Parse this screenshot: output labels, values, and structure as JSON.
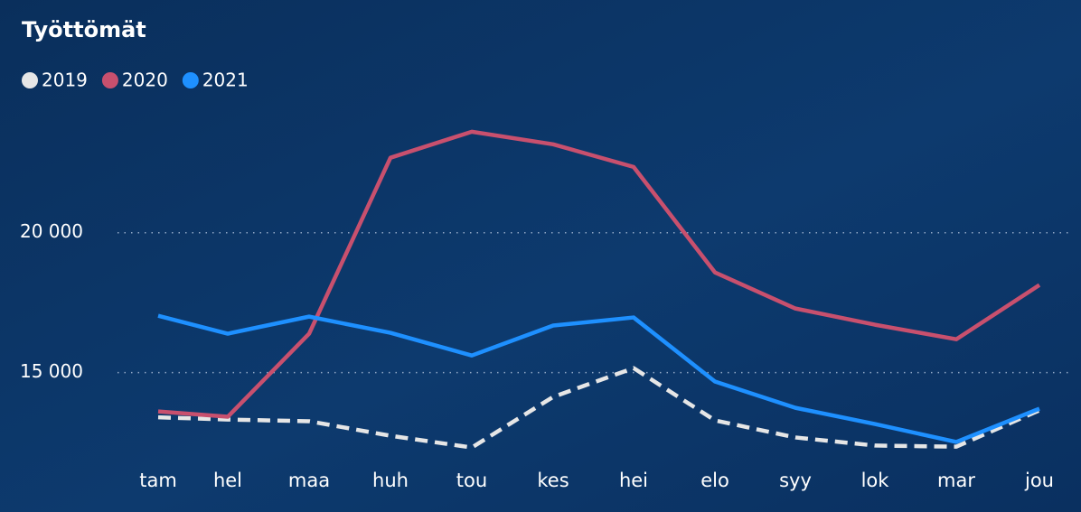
{
  "chart_data": {
    "type": "line",
    "title": "Työttömät",
    "categories": [
      "tam",
      "hel",
      "maa",
      "huh",
      "tou",
      "kes",
      "hei",
      "elo",
      "syy",
      "lok",
      "mar",
      "jou"
    ],
    "series": [
      {
        "name": "2019",
        "color": "#e6e6e6",
        "dashed": true,
        "values": [
          13400,
          13320,
          13260,
          12740,
          12320,
          14130,
          15160,
          13290,
          12680,
          12390,
          12350,
          13650
        ]
      },
      {
        "name": "2020",
        "color": "#c8506e",
        "values": [
          13610,
          13420,
          16390,
          22680,
          23610,
          23160,
          22350,
          18580,
          17290,
          16710,
          16190,
          18130
        ]
      },
      {
        "name": "2021",
        "color": "#1e90ff",
        "values": [
          17030,
          16390,
          17000,
          16420,
          15610,
          16680,
          16970,
          14680,
          13740,
          13160,
          12520,
          13710
        ]
      }
    ],
    "ylim": [
      11500,
      24800
    ],
    "yticks": [
      {
        "value": 15000,
        "label": "15 000"
      },
      {
        "value": 20000,
        "label": "20 000"
      }
    ],
    "grid": true,
    "legend": "top-left"
  }
}
